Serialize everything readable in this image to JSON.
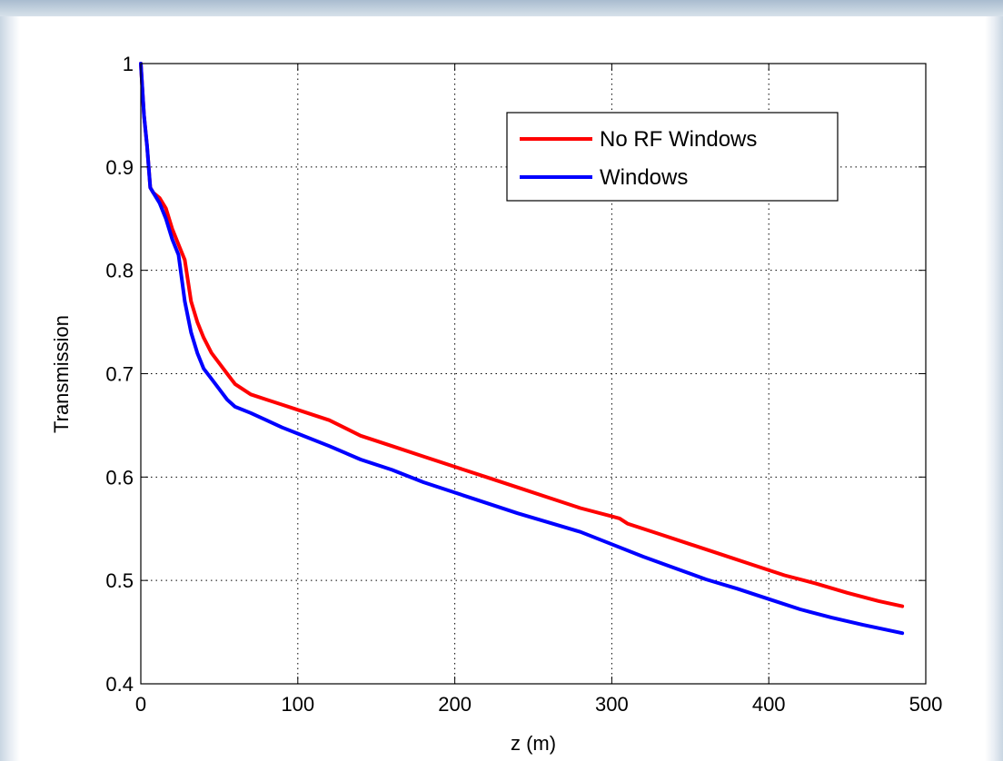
{
  "chart_data": {
    "type": "line",
    "title": "",
    "xlabel": "z (m)",
    "ylabel": "Transmission",
    "xlim": [
      0,
      500
    ],
    "ylim": [
      0.4,
      1.0
    ],
    "xticks": [
      "0",
      "100",
      "200",
      "300",
      "400",
      "500"
    ],
    "yticks": [
      "0.4",
      "0.5",
      "0.6",
      "0.7",
      "0.8",
      "0.9",
      "1"
    ],
    "grid": true,
    "legend_position": "top-right",
    "series": [
      {
        "name": "No RF Windows",
        "color": "#ff0000",
        "x": [
          0,
          2,
          4,
          6,
          8,
          12,
          16,
          20,
          24,
          28,
          32,
          36,
          40,
          45,
          50,
          55,
          60,
          70,
          80,
          90,
          100,
          120,
          140,
          160,
          180,
          200,
          220,
          240,
          260,
          280,
          300,
          305,
          310,
          330,
          350,
          370,
          390,
          410,
          430,
          450,
          470,
          485
        ],
        "y": [
          1.0,
          0.95,
          0.92,
          0.88,
          0.875,
          0.87,
          0.86,
          0.84,
          0.825,
          0.81,
          0.77,
          0.75,
          0.735,
          0.72,
          0.71,
          0.7,
          0.69,
          0.68,
          0.675,
          0.67,
          0.665,
          0.655,
          0.64,
          0.63,
          0.62,
          0.61,
          0.6,
          0.59,
          0.58,
          0.57,
          0.562,
          0.56,
          0.555,
          0.545,
          0.535,
          0.525,
          0.515,
          0.505,
          0.497,
          0.488,
          0.48,
          0.475
        ]
      },
      {
        "name": "Windows",
        "color": "#0000ff",
        "x": [
          0,
          2,
          4,
          6,
          8,
          12,
          16,
          20,
          24,
          28,
          32,
          36,
          40,
          45,
          50,
          55,
          60,
          70,
          80,
          90,
          100,
          120,
          140,
          160,
          180,
          200,
          220,
          240,
          260,
          280,
          300,
          320,
          340,
          360,
          380,
          400,
          420,
          440,
          460,
          485
        ],
        "y": [
          1.0,
          0.95,
          0.92,
          0.88,
          0.875,
          0.865,
          0.85,
          0.83,
          0.815,
          0.77,
          0.74,
          0.72,
          0.705,
          0.695,
          0.685,
          0.675,
          0.668,
          0.662,
          0.655,
          0.648,
          0.642,
          0.63,
          0.617,
          0.607,
          0.595,
          0.585,
          0.575,
          0.565,
          0.556,
          0.547,
          0.535,
          0.523,
          0.512,
          0.501,
          0.492,
          0.482,
          0.472,
          0.464,
          0.457,
          0.449
        ]
      }
    ]
  }
}
